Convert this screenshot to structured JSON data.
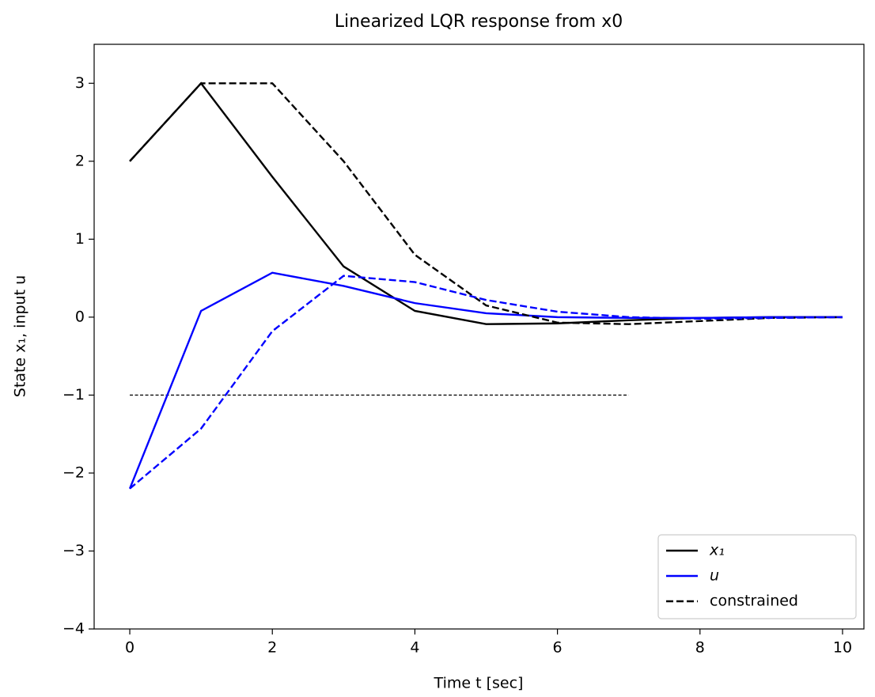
{
  "chart_data": {
    "type": "line",
    "title": "Linearized LQR response from x0",
    "xlabel": "Time t [sec]",
    "ylabel": "State x₁, input u",
    "x": [
      0,
      1,
      2,
      3,
      4,
      5,
      6,
      7,
      8,
      9,
      10
    ],
    "series": [
      {
        "color": "#000000",
        "dashed": false,
        "values": [
          2,
          3,
          1.8,
          0.65,
          0.08,
          -0.09,
          -0.08,
          -0.04,
          -0.01,
          0,
          0
        ]
      },
      {
        "color": "#0000ff",
        "dashed": false,
        "values": [
          -2.2,
          0.08,
          0.57,
          0.4,
          0.18,
          0.05,
          0.0,
          -0.01,
          -0.01,
          0,
          0
        ]
      },
      {
        "color": "#000000",
        "dashed": true,
        "values": [
          2,
          3,
          3,
          2.0,
          0.8,
          0.15,
          -0.07,
          -0.09,
          -0.05,
          -0.01,
          0
        ]
      },
      {
        "color": "#0000ff",
        "dashed": true,
        "values": [
          -2.2,
          -1.43,
          -0.18,
          0.53,
          0.45,
          0.22,
          0.07,
          0.0,
          -0.02,
          -0.01,
          0
        ]
      }
    ],
    "hline": {
      "y": -1,
      "xmin": 0,
      "xmax": 7,
      "color": "#000000"
    },
    "legend": [
      {
        "name": "x₁",
        "color": "#000000",
        "dashed": false
      },
      {
        "name": "u",
        "color": "#0000ff",
        "dashed": false
      },
      {
        "name": "constrained",
        "color": "#000000",
        "dashed": true
      }
    ],
    "legend_position": "lower right",
    "xlim": [
      -0.5,
      10.3
    ],
    "ylim": [
      -4,
      3.5
    ],
    "xticks": [
      0,
      2,
      4,
      6,
      8,
      10
    ],
    "yticks": [
      {
        "value": -4,
        "label": "−4"
      },
      {
        "value": -3,
        "label": "−3"
      },
      {
        "value": -2,
        "label": "−2"
      },
      {
        "value": -1,
        "label": "−1"
      },
      0,
      1,
      2,
      3
    ]
  }
}
